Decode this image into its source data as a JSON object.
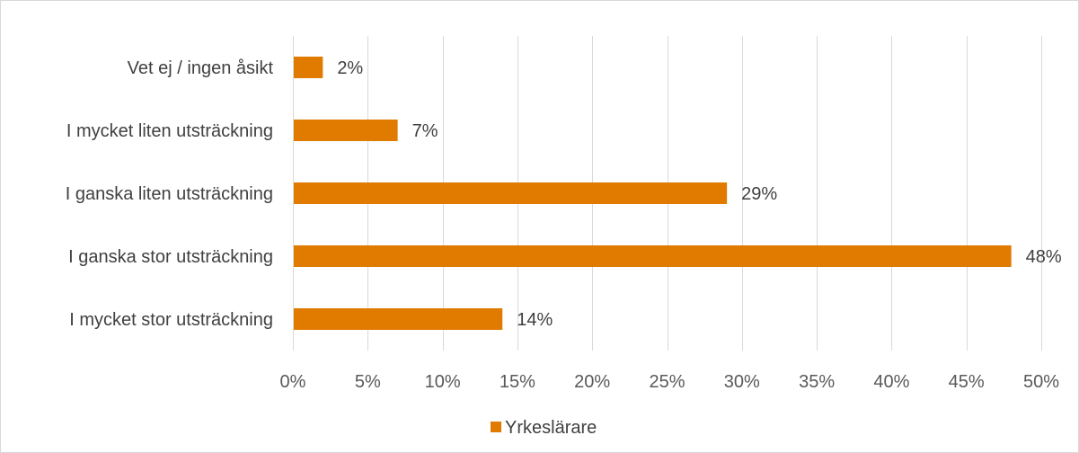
{
  "chart_data": {
    "type": "bar",
    "orientation": "horizontal",
    "categories": [
      "Vet ej / ingen åsikt",
      "I mycket liten utsträckning",
      "I ganska liten utsträckning",
      "I ganska stor utsträckning",
      "I mycket stor utsträckning"
    ],
    "series": [
      {
        "name": "Yrkeslärare",
        "values": [
          2,
          7,
          29,
          48,
          14
        ],
        "color": "#e07b00"
      }
    ],
    "data_labels": [
      "2%",
      "7%",
      "29%",
      "48%",
      "14%"
    ],
    "x_ticks": [
      0,
      5,
      10,
      15,
      20,
      25,
      30,
      35,
      40,
      45,
      50
    ],
    "x_tick_labels": [
      "0%",
      "5%",
      "10%",
      "15%",
      "20%",
      "25%",
      "30%",
      "35%",
      "40%",
      "45%",
      "50%"
    ],
    "xlim": [
      0,
      50
    ],
    "grid": "vertical",
    "gridline_color": "#d9d9d9",
    "legend_position": "bottom",
    "title": "",
    "xlabel": "",
    "ylabel": ""
  }
}
